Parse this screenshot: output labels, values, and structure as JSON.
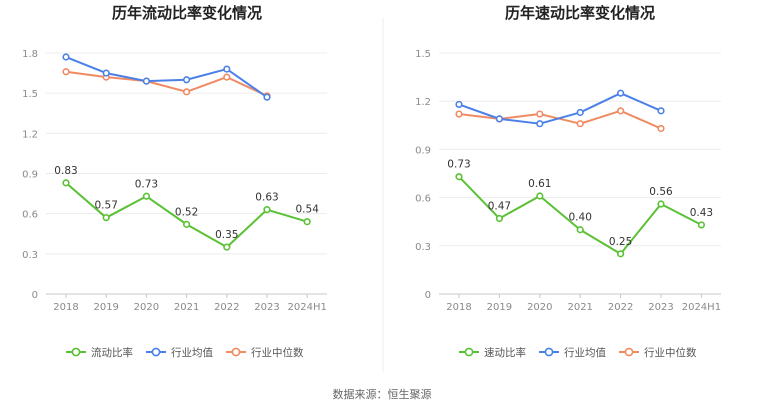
{
  "source_text": "数据来源：恒生聚源",
  "chart_data": [
    {
      "type": "line",
      "title": "历年流动比率变化情况",
      "categories": [
        "2018",
        "2019",
        "2020",
        "2021",
        "2022",
        "2023",
        "2024H1"
      ],
      "ylim": [
        0,
        1.8
      ],
      "yticks": [
        "0",
        "0.3",
        "0.6",
        "0.9",
        "1.2",
        "1.5",
        "1.8"
      ],
      "grid": true,
      "legend": "bottom",
      "series": [
        {
          "name": "流动比率",
          "color": "#5ac134",
          "values": [
            0.83,
            0.57,
            0.73,
            0.52,
            0.35,
            0.63,
            0.54
          ],
          "labels": [
            "0.83",
            "0.57",
            "0.73",
            "0.52",
            "0.35",
            "0.63",
            "0.54"
          ]
        },
        {
          "name": "行业均值",
          "color": "#4a80e8",
          "values": [
            1.77,
            1.65,
            1.59,
            1.6,
            1.68,
            1.47,
            null
          ]
        },
        {
          "name": "行业中位数",
          "color": "#f08a62",
          "values": [
            1.66,
            1.62,
            1.59,
            1.51,
            1.62,
            1.48,
            null
          ]
        }
      ]
    },
    {
      "type": "line",
      "title": "历年速动比率变化情况",
      "categories": [
        "2018",
        "2019",
        "2020",
        "2021",
        "2022",
        "2023",
        "2024H1"
      ],
      "ylim": [
        0,
        1.5
      ],
      "yticks": [
        "0",
        "0.3",
        "0.6",
        "0.9",
        "1.2",
        "1.5"
      ],
      "grid": true,
      "legend": "bottom",
      "series": [
        {
          "name": "速动比率",
          "color": "#5ac134",
          "values": [
            0.73,
            0.47,
            0.61,
            0.4,
            0.25,
            0.56,
            0.43
          ],
          "labels": [
            "0.73",
            "0.47",
            "0.61",
            "0.40",
            "0.25",
            "0.56",
            "0.43"
          ]
        },
        {
          "name": "行业均值",
          "color": "#4a80e8",
          "values": [
            1.18,
            1.09,
            1.06,
            1.13,
            1.25,
            1.14,
            null
          ]
        },
        {
          "name": "行业中位数",
          "color": "#f08a62",
          "values": [
            1.12,
            1.09,
            1.12,
            1.06,
            1.14,
            1.03,
            null
          ]
        }
      ]
    }
  ]
}
